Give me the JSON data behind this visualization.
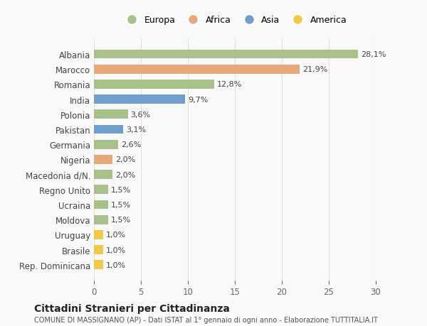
{
  "countries": [
    "Albania",
    "Marocco",
    "Romania",
    "India",
    "Polonia",
    "Pakistan",
    "Germania",
    "Nigeria",
    "Macedonia d/N.",
    "Regno Unito",
    "Ucraina",
    "Moldova",
    "Uruguay",
    "Brasile",
    "Rep. Dominicana"
  ],
  "values": [
    28.1,
    21.9,
    12.8,
    9.7,
    3.6,
    3.1,
    2.6,
    2.0,
    2.0,
    1.5,
    1.5,
    1.5,
    1.0,
    1.0,
    1.0
  ],
  "labels": [
    "28,1%",
    "21,9%",
    "12,8%",
    "9,7%",
    "3,6%",
    "3,1%",
    "2,6%",
    "2,0%",
    "2,0%",
    "1,5%",
    "1,5%",
    "1,5%",
    "1,0%",
    "1,0%",
    "1,0%"
  ],
  "continents": [
    "Europa",
    "Africa",
    "Europa",
    "Asia",
    "Europa",
    "Asia",
    "Europa",
    "Africa",
    "Europa",
    "Europa",
    "Europa",
    "Europa",
    "America",
    "America",
    "America"
  ],
  "colors": {
    "Europa": "#a8c08a",
    "Africa": "#e8a87c",
    "Asia": "#6e9ec9",
    "America": "#f0c84a"
  },
  "legend_order": [
    "Europa",
    "Africa",
    "Asia",
    "America"
  ],
  "title": "Cittadini Stranieri per Cittadinanza",
  "subtitle": "COMUNE DI MASSIGNANO (AP) - Dati ISTAT al 1° gennaio di ogni anno - Elaborazione TUTTITALIA.IT",
  "xlim": [
    0,
    30
  ],
  "xticks": [
    0,
    5,
    10,
    15,
    20,
    25,
    30
  ],
  "background_color": "#f9f9f9",
  "grid_color": "#e0e0e0"
}
